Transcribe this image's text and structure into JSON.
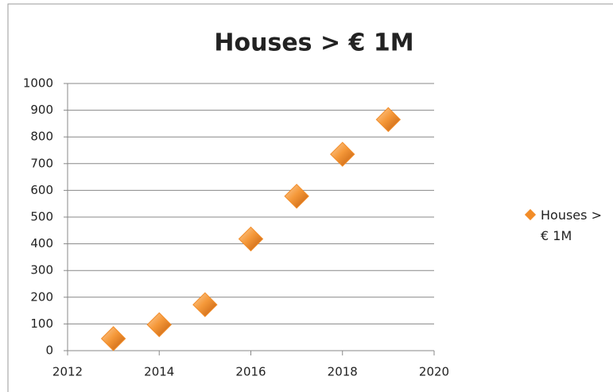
{
  "chart_data": {
    "type": "scatter",
    "title": "Houses > € 1M",
    "x": [
      2013,
      2014,
      2015,
      2016,
      2017,
      2018,
      2019
    ],
    "series": [
      {
        "name": "Houses > € 1M",
        "color": "#f28c28",
        "values": [
          45,
          97,
          172,
          418,
          578,
          735,
          865
        ]
      }
    ],
    "xlim": [
      2012,
      2020
    ],
    "xticks": [
      2012,
      2014,
      2016,
      2018,
      2020
    ],
    "ylim": [
      0,
      1000
    ],
    "yticks": [
      0,
      100,
      200,
      300,
      400,
      500,
      600,
      700,
      800,
      900,
      1000
    ],
    "grid": true,
    "legend": "right"
  }
}
